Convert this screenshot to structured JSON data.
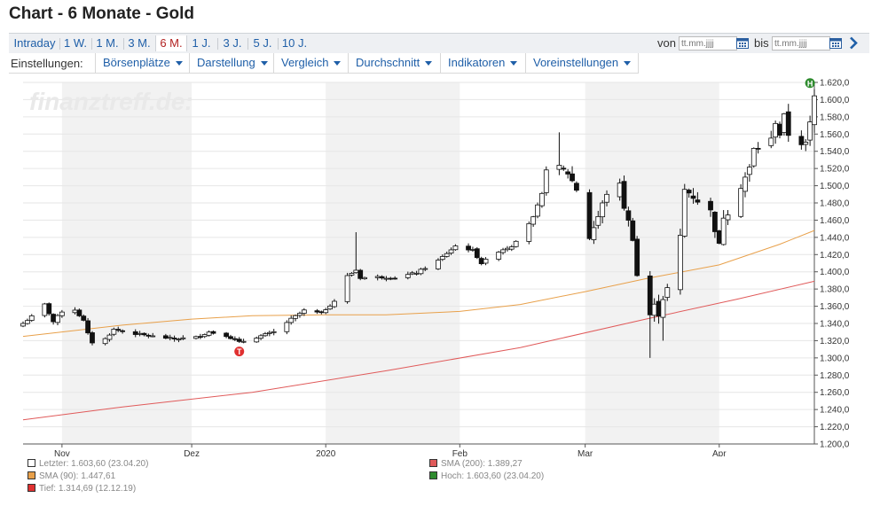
{
  "page_title": "Chart - 6 Monate - Gold",
  "ranges": [
    "Intraday",
    "1 W.",
    "1 M.",
    "3 M.",
    "6 M.",
    "1 J.",
    "3 J.",
    "5 J.",
    "10 J."
  ],
  "active_range": "6 M.",
  "date_filter": {
    "from_label": "von",
    "to_label": "bis",
    "placeholder": "tt.mm.jjjj"
  },
  "settings": {
    "label": "Einstellungen:",
    "menus": [
      "Börsenplätze",
      "Darstellung",
      "Vergleich",
      "Durchschnitt",
      "Indikatoren",
      "Voreinstellungen"
    ]
  },
  "watermark": "finanztreff.de:",
  "colors": {
    "link": "#1f5fa8",
    "active_tab": "#b22222",
    "sma90": "#e8a04a",
    "sma200": "#e05a5a",
    "high_marker": "#2e8b2e",
    "low_marker": "#e03030",
    "band": "#f2f2f2"
  },
  "markers": {
    "high": "H",
    "low": "T"
  },
  "legend": [
    {
      "text": "Letzter: 1.603,60 (23.04.20)",
      "color": "#ffffff"
    },
    {
      "text": "SMA (200): 1.389,27",
      "color": "#e05a5a"
    },
    {
      "text": "SMA (90): 1.447,61",
      "color": "#e8a04a"
    },
    {
      "text": "Hoch: 1.603,60 (23.04.20)",
      "color": "#2e8b2e"
    },
    {
      "text": "Tief: 1.314,69 (12.12.19)",
      "color": "#e03030"
    }
  ],
  "chart_data": {
    "type": "candlestick",
    "title": "Gold",
    "ylim": [
      1200,
      1620
    ],
    "yticks": [
      1200,
      1220,
      1240,
      1260,
      1280,
      1300,
      1320,
      1340,
      1360,
      1380,
      1400,
      1420,
      1440,
      1460,
      1480,
      1500,
      1520,
      1540,
      1560,
      1580,
      1600,
      1620
    ],
    "ytick_labels": [
      "1.200,0",
      "1.220,0",
      "1.240,0",
      "1.260,0",
      "1.280,0",
      "1.300,0",
      "1.320,0",
      "1.340,0",
      "1.360,0",
      "1.380,0",
      "1.400,0",
      "1.420,0",
      "1.440,0",
      "1.460,0",
      "1.480,0",
      "1.500,0",
      "1.520,0",
      "1.540,0",
      "1.560,0",
      "1.580,0",
      "1.600,0",
      "1.620,0"
    ],
    "x_range": [
      "2019-10-23",
      "2020-04-23"
    ],
    "month_labels": [
      {
        "label": "Nov",
        "date": "2019-11-01"
      },
      {
        "label": "Dez",
        "date": "2019-12-01"
      },
      {
        "label": "2020",
        "date": "2020-01-01"
      },
      {
        "label": "Feb",
        "date": "2020-02-01"
      },
      {
        "label": "Mar",
        "date": "2020-03-01"
      },
      {
        "label": "Apr",
        "date": "2020-04-01"
      }
    ],
    "shaded_months": [
      [
        "2019-11-01",
        "2019-12-01"
      ],
      [
        "2020-01-01",
        "2020-02-01"
      ],
      [
        "2020-03-01",
        "2020-04-01"
      ]
    ],
    "anchors": [
      [
        "2019-10-23",
        1340
      ],
      [
        "2019-10-25",
        1348
      ],
      [
        "2019-10-28",
        1362
      ],
      [
        "2019-10-30",
        1342
      ],
      [
        "2019-11-01",
        1354
      ],
      [
        "2019-11-04",
        1356
      ],
      [
        "2019-11-06",
        1343
      ],
      [
        "2019-11-07",
        1328
      ],
      [
        "2019-11-08",
        1318
      ],
      [
        "2019-11-11",
        1322
      ],
      [
        "2019-11-13",
        1333
      ],
      [
        "2019-11-18",
        1328
      ],
      [
        "2019-11-22",
        1325
      ],
      [
        "2019-11-27",
        1322
      ],
      [
        "2019-12-02",
        1324
      ],
      [
        "2019-12-05",
        1330
      ],
      [
        "2019-12-09",
        1326
      ],
      [
        "2019-12-12",
        1318
      ],
      [
        "2019-12-16",
        1324
      ],
      [
        "2019-12-20",
        1330
      ],
      [
        "2019-12-24",
        1345
      ],
      [
        "2019-12-27",
        1355
      ],
      [
        "2019-12-31",
        1352
      ],
      [
        "2020-01-03",
        1366
      ],
      [
        "2020-01-06",
        1395
      ],
      [
        "2020-01-08",
        1402
      ],
      [
        "2020-01-09",
        1393
      ],
      [
        "2020-01-13",
        1394
      ],
      [
        "2020-01-17",
        1393
      ],
      [
        "2020-01-22",
        1399
      ],
      [
        "2020-01-27",
        1413
      ],
      [
        "2020-01-31",
        1430
      ],
      [
        "2020-02-04",
        1425
      ],
      [
        "2020-02-06",
        1410
      ],
      [
        "2020-02-10",
        1424
      ],
      [
        "2020-02-13",
        1430
      ],
      [
        "2020-02-18",
        1463
      ],
      [
        "2020-02-20",
        1490
      ],
      [
        "2020-02-21",
        1522
      ],
      [
        "2020-02-24",
        1520
      ],
      [
        "2020-02-26",
        1515
      ],
      [
        "2020-02-28",
        1496
      ],
      [
        "2020-03-02",
        1440
      ],
      [
        "2020-03-04",
        1464
      ],
      [
        "2020-03-06",
        1492
      ],
      [
        "2020-03-09",
        1500
      ],
      [
        "2020-03-10",
        1476
      ],
      [
        "2020-03-12",
        1440
      ],
      [
        "2020-03-13",
        1396
      ],
      [
        "2020-03-16",
        1350
      ],
      [
        "2020-03-17",
        1360
      ],
      [
        "2020-03-18",
        1352
      ],
      [
        "2020-03-19",
        1370
      ],
      [
        "2020-03-20",
        1380
      ],
      [
        "2020-03-23",
        1440
      ],
      [
        "2020-03-24",
        1495
      ],
      [
        "2020-03-25",
        1492
      ],
      [
        "2020-03-27",
        1483
      ],
      [
        "2020-03-30",
        1470
      ],
      [
        "2020-04-01",
        1430
      ],
      [
        "2020-04-02",
        1465
      ],
      [
        "2020-04-03",
        1470
      ],
      [
        "2020-04-06",
        1500
      ],
      [
        "2020-04-08",
        1520
      ],
      [
        "2020-04-09",
        1542
      ],
      [
        "2020-04-13",
        1553
      ],
      [
        "2020-04-14",
        1575
      ],
      [
        "2020-04-15",
        1560
      ],
      [
        "2020-04-16",
        1580
      ],
      [
        "2020-04-17",
        1560
      ],
      [
        "2020-04-20",
        1550
      ],
      [
        "2020-04-21",
        1548
      ],
      [
        "2020-04-22",
        1572
      ],
      [
        "2020-04-23",
        1603.6
      ]
    ],
    "spikes": [
      [
        "2020-01-08",
        1446,
        null
      ],
      [
        "2020-02-24",
        1562,
        null
      ],
      [
        "2020-03-16",
        null,
        1300
      ],
      [
        "2020-03-19",
        null,
        1320
      ],
      [
        "2020-04-23",
        1612,
        null
      ]
    ],
    "series": [
      {
        "name": "SMA (90)",
        "points": [
          [
            "2019-10-23",
            1325
          ],
          [
            "2019-11-15",
            1338
          ],
          [
            "2019-12-01",
            1345
          ],
          [
            "2019-12-15",
            1349
          ],
          [
            "2020-01-01",
            1350
          ],
          [
            "2020-01-15",
            1350
          ],
          [
            "2020-02-01",
            1354
          ],
          [
            "2020-02-15",
            1362
          ],
          [
            "2020-03-01",
            1377
          ],
          [
            "2020-03-15",
            1392
          ],
          [
            "2020-04-01",
            1408
          ],
          [
            "2020-04-15",
            1432
          ],
          [
            "2020-04-23",
            1448
          ]
        ]
      },
      {
        "name": "SMA (200)",
        "points": [
          [
            "2019-10-23",
            1228
          ],
          [
            "2019-11-15",
            1243
          ],
          [
            "2019-12-15",
            1260
          ],
          [
            "2020-01-15",
            1285
          ],
          [
            "2020-02-15",
            1312
          ],
          [
            "2020-03-15",
            1345
          ],
          [
            "2020-04-05",
            1368
          ],
          [
            "2020-04-23",
            1389
          ]
        ]
      }
    ]
  }
}
